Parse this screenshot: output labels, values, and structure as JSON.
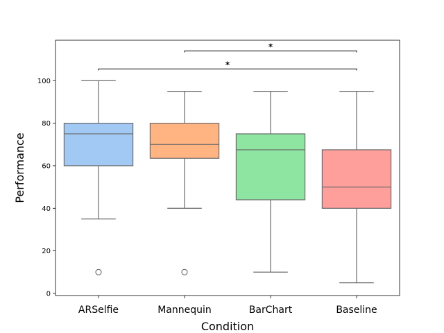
{
  "chart_data": {
    "type": "box",
    "xlabel": "Condition",
    "ylabel": "Performance",
    "ylim": [
      -1,
      119
    ],
    "yticks": [
      0,
      20,
      40,
      60,
      80,
      100
    ],
    "categories": [
      "ARSelfie",
      "Mannequin",
      "BarChart",
      "Baseline"
    ],
    "boxes": [
      {
        "category": "ARSelfie",
        "color": "#a1c9f4",
        "whisker_low": 35,
        "q1": 60,
        "median": 75,
        "q3": 80,
        "whisker_high": 100,
        "outliers": [
          10
        ]
      },
      {
        "category": "Mannequin",
        "color": "#ffb482",
        "whisker_low": 40,
        "q1": 63.5,
        "median": 70,
        "q3": 80,
        "whisker_high": 95,
        "outliers": [
          10
        ]
      },
      {
        "category": "BarChart",
        "color": "#8de5a1",
        "whisker_low": 10,
        "q1": 44,
        "median": 67.5,
        "q3": 75,
        "whisker_high": 95,
        "outliers": []
      },
      {
        "category": "Baseline",
        "color": "#ff9f9b",
        "whisker_low": 5,
        "q1": 40,
        "median": 50,
        "q3": 67.5,
        "whisker_high": 95,
        "outliers": []
      }
    ],
    "significance": [
      {
        "from": "Mannequin",
        "to": "Baseline",
        "y": 114,
        "label": "*"
      },
      {
        "from": "ARSelfie",
        "to": "Baseline",
        "y": 105.5,
        "label": "*"
      }
    ],
    "grid": false,
    "legend": "none"
  }
}
